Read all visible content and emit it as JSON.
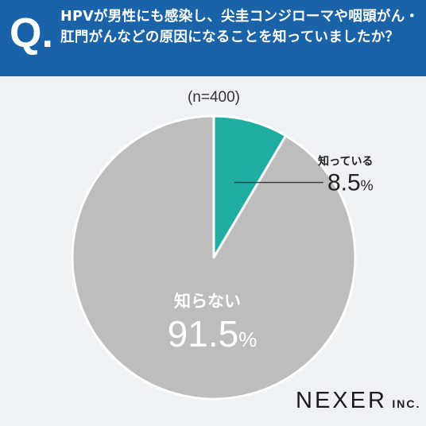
{
  "header": {
    "q_mark": "Q.",
    "question": "HPVが男性にも感染し、尖圭コンジローマや咽頭がん・肛門がんなどの原因になることを知っていましたか？"
  },
  "brand": {
    "name": "NEXER",
    "suffix": "INC."
  },
  "colors": {
    "header_bg": "#1b63a8",
    "slice_known": "#1fada2",
    "slice_unknown": "#bdbdbd",
    "background": "#eef2f5"
  },
  "chart_data": {
    "type": "pie",
    "sample_note": "(n=400)",
    "slices": [
      {
        "label": "知っている",
        "value": 8.5,
        "display_value": "8.5",
        "unit": "%",
        "color": "#1fada2"
      },
      {
        "label": "知らない",
        "value": 91.5,
        "display_value": "91.5",
        "unit": "%",
        "color": "#bdbdbd"
      }
    ]
  }
}
